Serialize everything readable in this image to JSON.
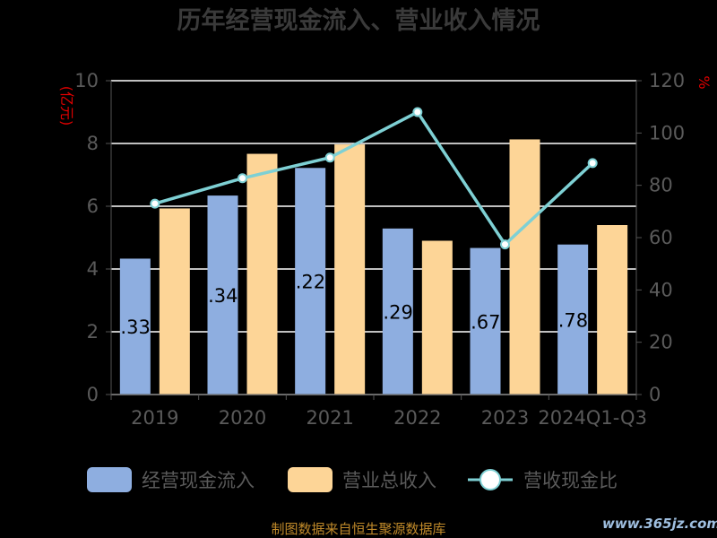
{
  "chart_data": {
    "type": "bar",
    "title": "历年经营现金流入、营业收入情况",
    "categories": [
      "2019",
      "2020",
      "2021",
      "2022",
      "2023",
      "2024Q1-Q3"
    ],
    "left_axis": {
      "unit": "(亿元)",
      "ylim": [
        0,
        10
      ],
      "ticks": [
        "0",
        "2",
        "4",
        "6",
        "8",
        "10"
      ]
    },
    "right_axis": {
      "unit": "%",
      "ylim": [
        0,
        120
      ],
      "ticks": [
        "0",
        "20",
        "40",
        "60",
        "80",
        "100",
        "120"
      ]
    },
    "series": [
      {
        "name": "经营现金流入",
        "type": "bar",
        "axis": "left",
        "color": "#8eaee0",
        "values": [
          4.33,
          6.34,
          7.22,
          5.29,
          4.67,
          4.78
        ],
        "data_labels": [
          ".33",
          ".34",
          ".22",
          ".29",
          ".67",
          ".78"
        ]
      },
      {
        "name": "营业总收入",
        "type": "bar",
        "axis": "left",
        "color": "#fdd597",
        "values": [
          5.93,
          7.67,
          7.97,
          4.9,
          8.13,
          5.4
        ]
      },
      {
        "name": "营收现金比",
        "type": "line",
        "axis": "right",
        "color": "#7ed0d4",
        "values": [
          73,
          82.7,
          90.6,
          108,
          57.4,
          88.5
        ]
      }
    ],
    "grid": true,
    "legend_position": "bottom"
  },
  "footer": {
    "source": "制图数据来自恒生聚源数据库",
    "watermark": "www.365jz.com"
  }
}
